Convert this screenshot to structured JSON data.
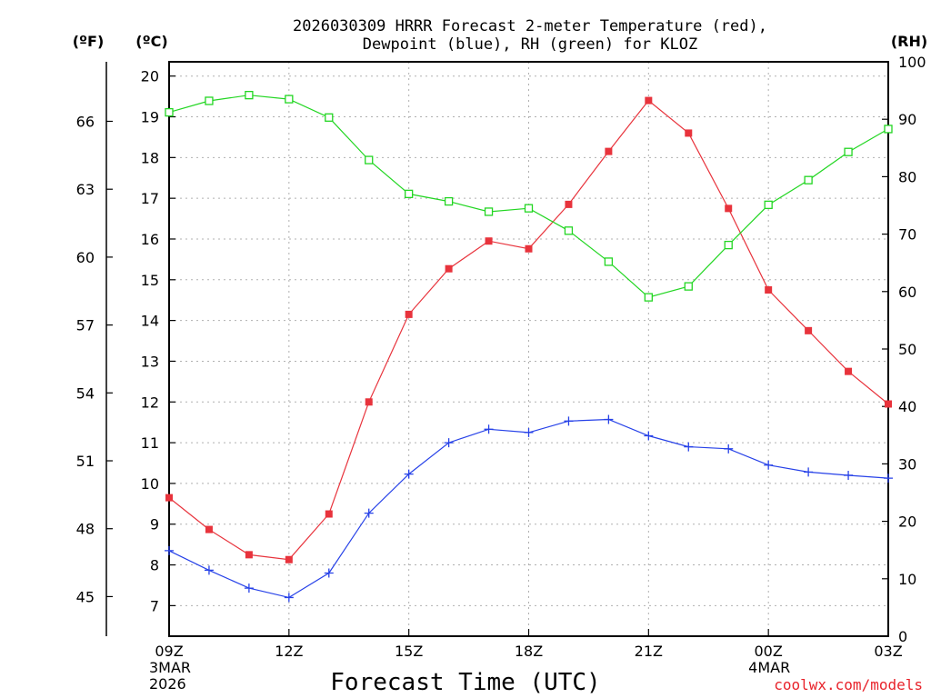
{
  "chart_data": {
    "type": "line",
    "title_line1": "2026030309 HRRR Forecast 2-meter Temperature (red),",
    "title_line2": "Dewpoint (blue), RH (green) for KLOZ",
    "xlabel": "Forecast Time (UTC)",
    "credit": "coolwx.com/models",
    "units": {
      "f": "(ºF)",
      "c": "(ºC)",
      "rh": "(RH)"
    },
    "x_hours": [
      0,
      1,
      2,
      3,
      4,
      5,
      6,
      7,
      8,
      9,
      10,
      11,
      12,
      13,
      14,
      15,
      16,
      17,
      18
    ],
    "x_ticks": [
      {
        "hour": 0,
        "label": "09Z",
        "sub1": "3MAR",
        "sub2": "2026"
      },
      {
        "hour": 3,
        "label": "12Z",
        "sub1": "",
        "sub2": ""
      },
      {
        "hour": 6,
        "label": "15Z",
        "sub1": "",
        "sub2": ""
      },
      {
        "hour": 9,
        "label": "18Z",
        "sub1": "",
        "sub2": ""
      },
      {
        "hour": 12,
        "label": "21Z",
        "sub1": "",
        "sub2": ""
      },
      {
        "hour": 15,
        "label": "00Z",
        "sub1": "4MAR",
        "sub2": ""
      },
      {
        "hour": 18,
        "label": "03Z",
        "sub1": "",
        "sub2": ""
      }
    ],
    "ylim_c": [
      6.25,
      20.35
    ],
    "ylim_rh": [
      0,
      100
    ],
    "c_ticks": [
      7,
      8,
      9,
      10,
      11,
      12,
      13,
      14,
      15,
      16,
      17,
      18,
      19,
      20
    ],
    "f_ticks": [
      45,
      48,
      51,
      54,
      57,
      60,
      63,
      66
    ],
    "rh_ticks": [
      0,
      10,
      20,
      30,
      40,
      50,
      60,
      70,
      80,
      90,
      100
    ],
    "series": [
      {
        "name": "Temperature",
        "unit": "C",
        "color": "#e8333c",
        "marker": "filled-square",
        "values": [
          9.65,
          8.87,
          8.25,
          8.13,
          9.25,
          12.0,
          14.15,
          15.27,
          15.95,
          15.76,
          16.85,
          18.15,
          19.4,
          18.6,
          16.75,
          14.75,
          13.75,
          12.75,
          11.95
        ]
      },
      {
        "name": "Dewpoint",
        "unit": "C",
        "color": "#2641e8",
        "marker": "plus",
        "values": [
          8.35,
          7.87,
          7.43,
          7.2,
          7.8,
          9.27,
          10.23,
          11.0,
          11.33,
          11.25,
          11.53,
          11.57,
          11.17,
          10.9,
          10.85,
          10.45,
          10.28,
          10.2,
          10.13
        ]
      },
      {
        "name": "RH",
        "unit": "%",
        "color": "#22d622",
        "marker": "open-square",
        "values": [
          91.2,
          93.2,
          94.2,
          93.5,
          90.3,
          82.9,
          77.0,
          75.7,
          73.9,
          74.5,
          70.6,
          65.2,
          59.0,
          60.9,
          68.1,
          75.1,
          79.4,
          84.3,
          88.3
        ]
      }
    ]
  }
}
